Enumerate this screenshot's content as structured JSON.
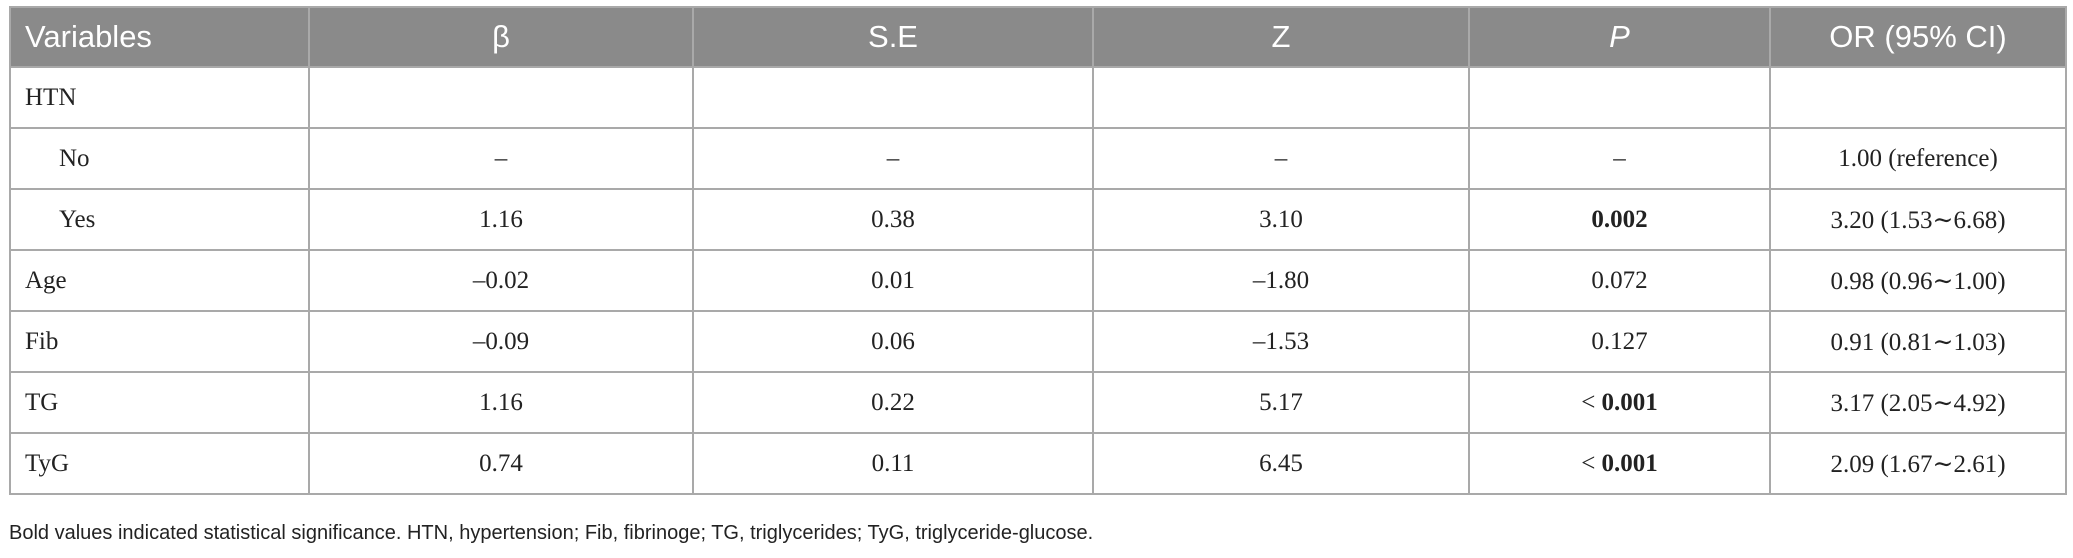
{
  "table": {
    "headers": [
      "Variables",
      "β",
      "S.E",
      "Z",
      "P",
      "OR (95% CI)"
    ],
    "rows": [
      {
        "variable": "HTN",
        "beta": "",
        "se": "",
        "z": "",
        "p_prefix": "",
        "p": "",
        "or_ci": ""
      },
      {
        "variable": "No",
        "beta": "–",
        "se": "–",
        "z": "–",
        "p_prefix": "",
        "p": "–",
        "or_ci": "1.00 (reference)"
      },
      {
        "variable": "Yes",
        "beta": "1.16",
        "se": "0.38",
        "z": "3.10",
        "p_prefix": "",
        "p": "0.002",
        "or_ci": "3.20 (1.53∼6.68)"
      },
      {
        "variable": "Age",
        "beta": "–0.02",
        "se": "0.01",
        "z": "–1.80",
        "p_prefix": "",
        "p": "0.072",
        "or_ci": "0.98 (0.96∼1.00)"
      },
      {
        "variable": "Fib",
        "beta": "–0.09",
        "se": "0.06",
        "z": "–1.53",
        "p_prefix": "",
        "p": "0.127",
        "or_ci": "0.91 (0.81∼1.03)"
      },
      {
        "variable": "TG",
        "beta": "1.16",
        "se": "0.22",
        "z": "5.17",
        "p_prefix": "< ",
        "p": "0.001",
        "or_ci": "3.17 (2.05∼4.92)"
      },
      {
        "variable": "TyG",
        "beta": "0.74",
        "se": "0.11",
        "z": "6.45",
        "p_prefix": "< ",
        "p": "0.001",
        "or_ci": "2.09 (1.67∼2.61)"
      }
    ]
  },
  "footnote": "Bold values indicated statistical significance. HTN, hypertension; Fib, fibrinoge; TG, triglycerides; TyG, triglyceride-glucose."
}
